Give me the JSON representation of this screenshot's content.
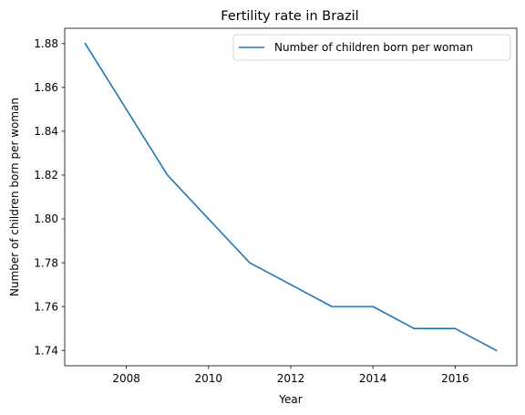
{
  "chart_data": {
    "type": "line",
    "title": "Fertility rate in Brazil",
    "xlabel": "Year",
    "ylabel": "Number of children born per woman",
    "x": [
      2007,
      2008,
      2009,
      2010,
      2011,
      2012,
      2013,
      2014,
      2015,
      2016,
      2017
    ],
    "series": [
      {
        "name": "Number of children born per woman",
        "values": [
          1.88,
          1.85,
          1.82,
          1.8,
          1.78,
          1.77,
          1.76,
          1.76,
          1.75,
          1.75,
          1.74
        ],
        "color": "#1f77b4"
      }
    ],
    "xlim": [
      2006.5,
      2017.5
    ],
    "ylim": [
      1.733,
      1.887
    ],
    "xticks": [
      2008,
      2010,
      2012,
      2014,
      2016
    ],
    "yticks": [
      1.74,
      1.76,
      1.78,
      1.8,
      1.82,
      1.84,
      1.86,
      1.88
    ],
    "ytick_labels": [
      "1.74",
      "1.76",
      "1.78",
      "1.80",
      "1.82",
      "1.84",
      "1.86",
      "1.88"
    ],
    "grid": false,
    "legend": "top-right"
  }
}
